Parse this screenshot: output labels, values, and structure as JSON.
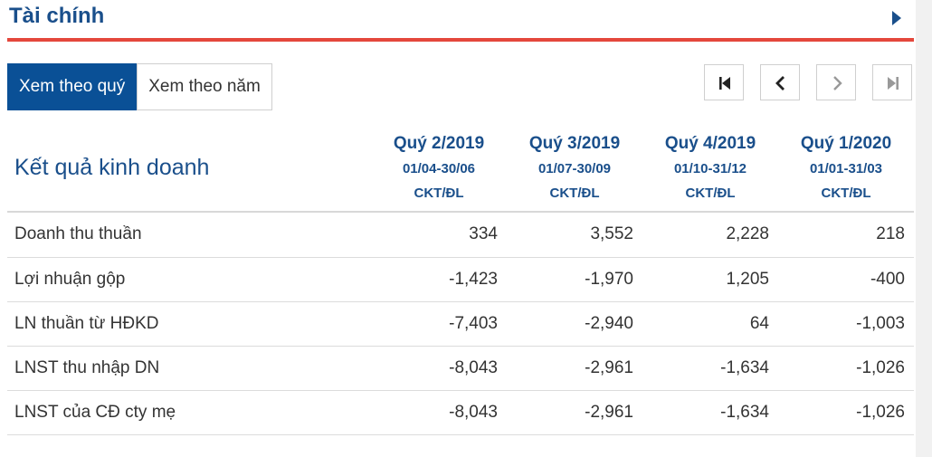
{
  "header": {
    "title": "Tài chính",
    "arrow_icon": "caret-right-icon"
  },
  "view_toggle": {
    "quarter_label": "Xem theo quý",
    "year_label": "Xem theo năm",
    "selected": "quarter"
  },
  "pager": {
    "first_icon": "first-page-icon",
    "prev_icon": "chevron-left-icon",
    "next_icon": "chevron-right-icon",
    "last_icon": "last-page-icon"
  },
  "table": {
    "section_title": "Kết quả kinh doanh",
    "periods": [
      {
        "name": "Quý 2/2019",
        "range": "01/04-30/06",
        "std": "CKT/ĐL"
      },
      {
        "name": "Quý 3/2019",
        "range": "01/07-30/09",
        "std": "CKT/ĐL"
      },
      {
        "name": "Quý 4/2019",
        "range": "01/10-31/12",
        "std": "CKT/ĐL"
      },
      {
        "name": "Quý 1/2020",
        "range": "01/01-31/03",
        "std": "CKT/ĐL"
      }
    ],
    "rows": [
      {
        "label": "Doanh thu thuần",
        "values": [
          "334",
          "3,552",
          "2,228",
          "218"
        ]
      },
      {
        "label": "Lợi nhuận gộp",
        "values": [
          "-1,423",
          "-1,970",
          "1,205",
          "-400"
        ]
      },
      {
        "label": "LN thuần từ HĐKD",
        "values": [
          "-7,403",
          "-2,940",
          "64",
          "-1,003"
        ]
      },
      {
        "label": "LNST thu nhập DN",
        "values": [
          "-8,043",
          "-2,961",
          "-1,634",
          "-1,026"
        ]
      },
      {
        "label": "LNST của CĐ cty mẹ",
        "values": [
          "-8,043",
          "-2,961",
          "-1,634",
          "-1,026"
        ]
      }
    ]
  }
}
